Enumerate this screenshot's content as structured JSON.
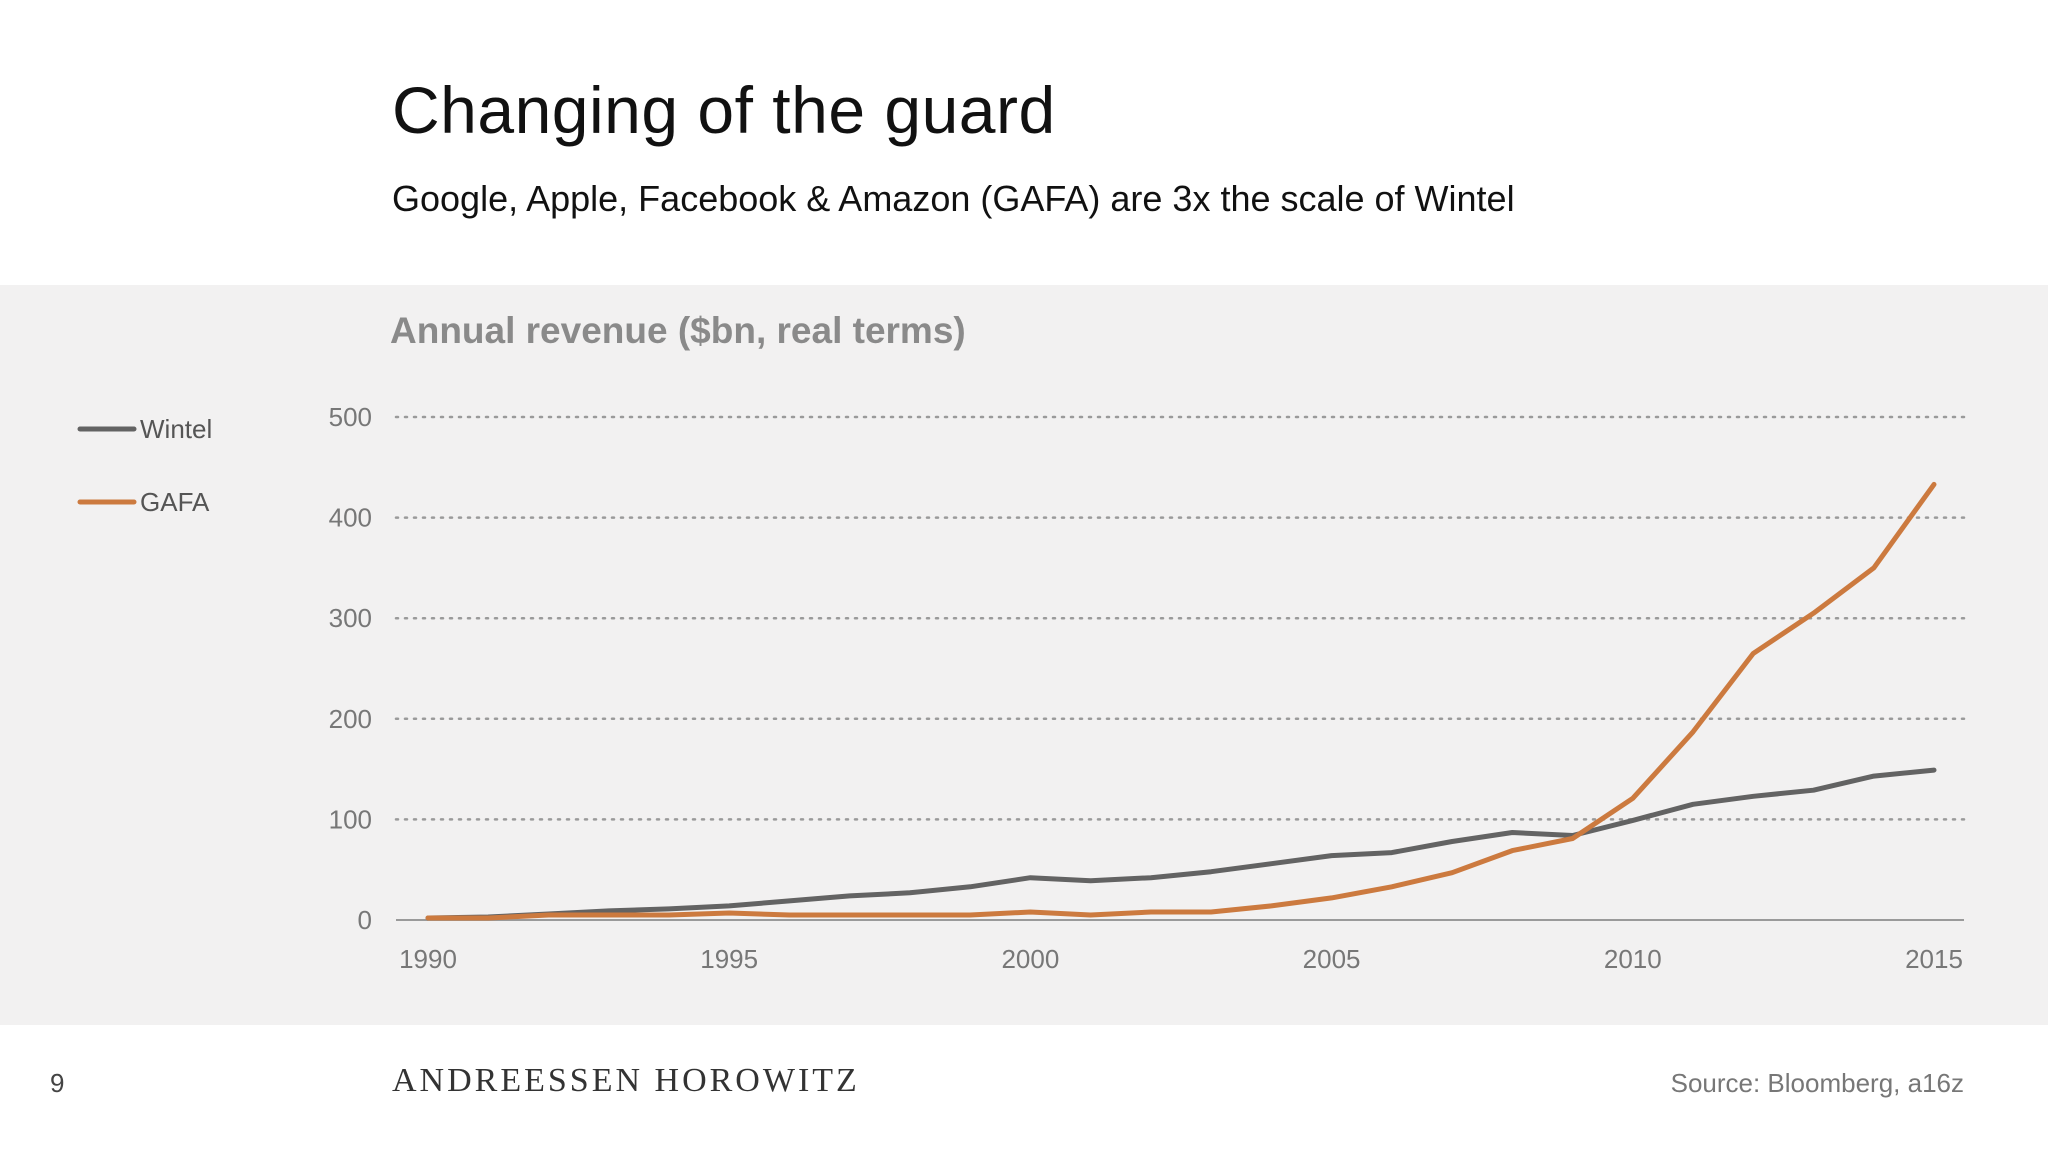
{
  "slide": {
    "title": "Changing of the guard",
    "subtitle": "Google, Apple, Facebook & Amazon (GAFA) are 3x the scale of Wintel",
    "page_number": "9",
    "brand": "ANDREESSEN HOROWITZ",
    "source": "Source: Bloomberg, a16z"
  },
  "colors": {
    "panel_bg": "#f2f1f1",
    "wintel": "#636363",
    "gafa": "#cc7a3f",
    "grid": "#9a9a9a",
    "axis_text": "#777777"
  },
  "chart_data": {
    "type": "line",
    "title": "Annual revenue ($bn, real terms)",
    "xlabel": "",
    "ylabel": "",
    "x": [
      1990,
      1991,
      1992,
      1993,
      1994,
      1995,
      1996,
      1997,
      1998,
      1999,
      2000,
      2001,
      2002,
      2003,
      2004,
      2005,
      2006,
      2007,
      2008,
      2009,
      2010,
      2011,
      2012,
      2013,
      2014,
      2015
    ],
    "xticks": [
      "1990",
      "1995",
      "2000",
      "2005",
      "2010",
      "2015"
    ],
    "yticks": [
      "0",
      "100",
      "200",
      "300",
      "400",
      "500"
    ],
    "xlim": [
      1990,
      2015
    ],
    "ylim": [
      0,
      500
    ],
    "grid": "horizontal dotted",
    "legend_position": "left",
    "series": [
      {
        "name": "Wintel",
        "color": "#636363",
        "values": [
          2,
          3,
          6,
          9,
          11,
          14,
          19,
          24,
          27,
          33,
          42,
          39,
          42,
          48,
          56,
          64,
          67,
          78,
          87,
          84,
          99,
          115,
          123,
          129,
          143,
          149
        ]
      },
      {
        "name": "GAFA",
        "color": "#cc7a3f",
        "values": [
          2,
          2,
          5,
          5,
          5,
          7,
          5,
          5,
          5,
          5,
          8,
          5,
          8,
          8,
          14,
          22,
          33,
          47,
          69,
          81,
          121,
          187,
          265,
          305,
          350,
          433
        ]
      }
    ]
  }
}
